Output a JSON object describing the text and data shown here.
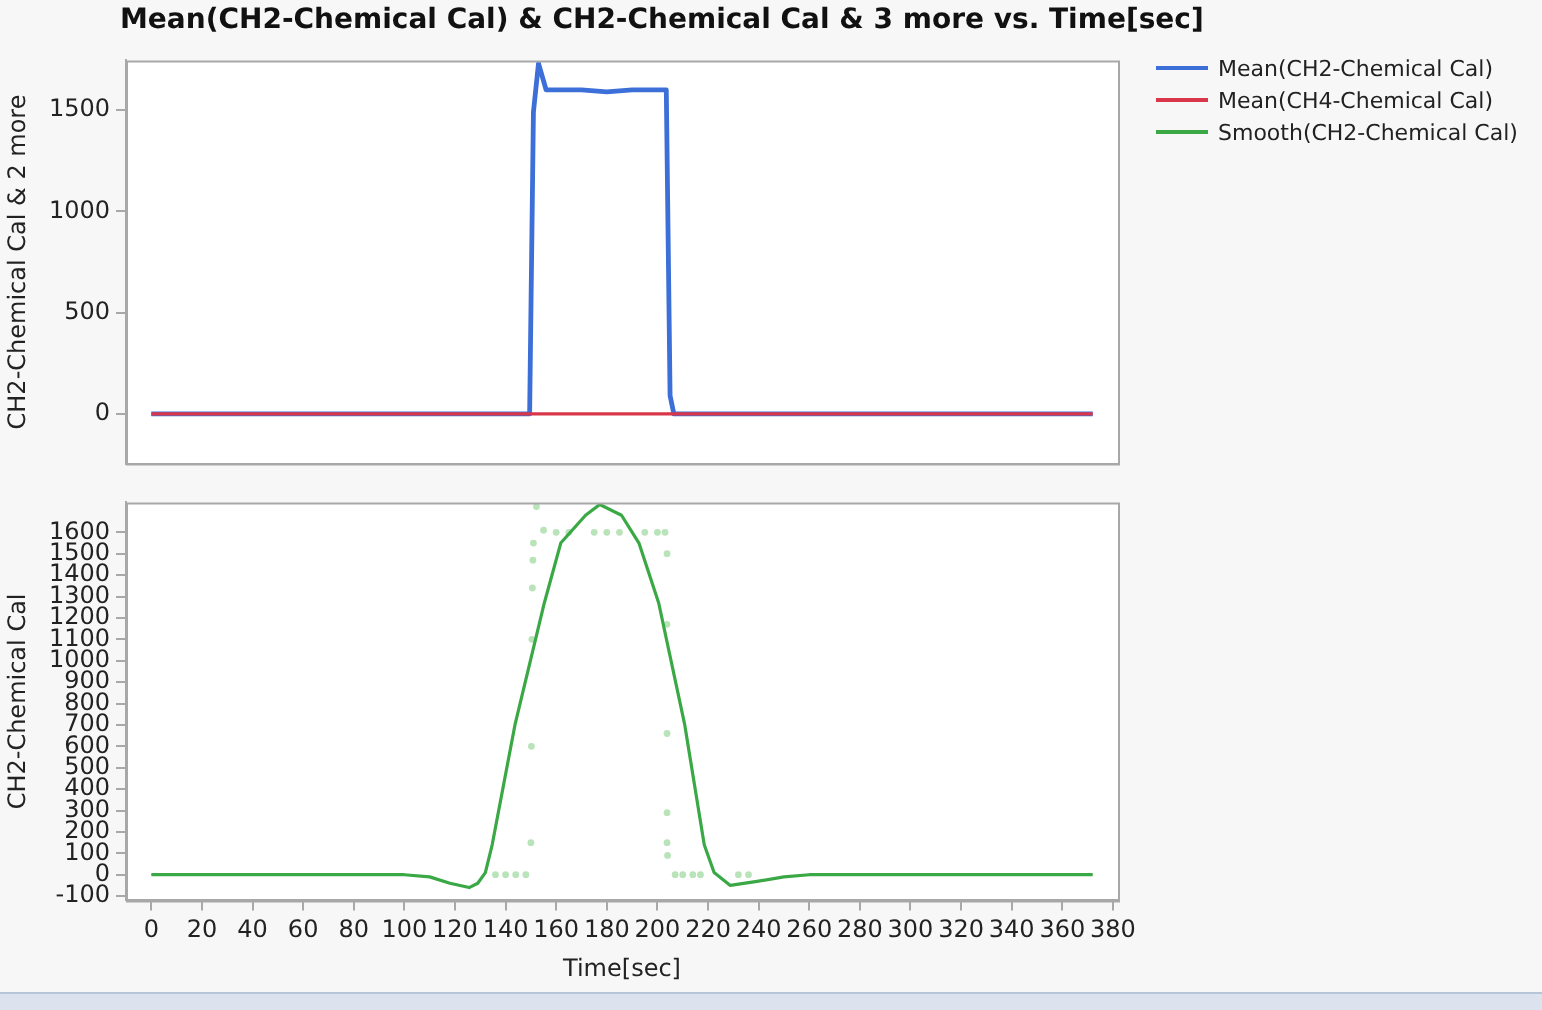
{
  "chart_data": [
    {
      "type": "line",
      "title": "Mean(CH2-Chemical Cal) & CH2-Chemical Cal & 3 more vs. Time[sec]",
      "ylabel": "CH2-Chemical Cal & 2 more",
      "xlim": [
        -10,
        382
      ],
      "ylim": [
        -245,
        1745
      ],
      "yticks": [
        0,
        500,
        1000,
        1500
      ],
      "tick_labels": "y",
      "legend": "right",
      "grid": false,
      "marker": "none",
      "line_style": "solid",
      "series": [
        {
          "name": "Mean(CH2-Chemical Cal)",
          "color": "#3d6fd8",
          "x": [
            0,
            50,
            100,
            149.5,
            151,
            153,
            156,
            160,
            170,
            180,
            190,
            200,
            203.5,
            205,
            206.5,
            250,
            300,
            372
          ],
          "values": [
            0,
            0,
            0,
            0,
            1490,
            1730,
            1600,
            1600,
            1600,
            1590,
            1600,
            1600,
            1600,
            90,
            0,
            0,
            0,
            0
          ]
        },
        {
          "name": "Mean(CH4-Chemical Cal)",
          "color": "#d9364a",
          "x": [
            0,
            372
          ],
          "values": [
            0,
            0
          ]
        }
      ]
    },
    {
      "type": "line",
      "ylabel": "CH2-Chemical Cal",
      "xlabel": "Time[sec]",
      "xlim": [
        -10,
        382
      ],
      "xticks": [
        0,
        20,
        40,
        60,
        80,
        100,
        120,
        140,
        160,
        180,
        200,
        220,
        240,
        260,
        280,
        300,
        320,
        340,
        360,
        380
      ],
      "ylim": [
        -120,
        1740
      ],
      "yticks": [
        -100,
        0,
        100,
        200,
        300,
        400,
        500,
        600,
        700,
        800,
        900,
        1000,
        1100,
        1200,
        1300,
        1400,
        1500,
        1600
      ],
      "legend": "right",
      "grid": false,
      "marker": "none",
      "line_style": "solid",
      "series": [
        {
          "type": "scatter",
          "marker": "circle",
          "color": "#b9e3b9",
          "x": [
            136,
            140,
            144,
            148,
            150,
            150.2,
            150.4,
            150.6,
            150.8,
            151,
            152.2,
            155,
            160,
            165,
            170,
            175,
            180,
            185,
            190,
            195,
            200,
            203,
            203.8,
            203.8,
            203.8,
            203.8,
            203.8,
            204,
            207,
            210,
            214,
            217,
            232,
            236
          ],
          "values": [
            0,
            0,
            0,
            0,
            150,
            600,
            1100,
            1340,
            1470,
            1550,
            1720,
            1610,
            1600,
            1600,
            null,
            1600,
            1600,
            1600,
            null,
            1600,
            1600,
            1600,
            1500,
            1170,
            660,
            290,
            150,
            90,
            0,
            0,
            0,
            0,
            0,
            0
          ]
        },
        {
          "name": "Smooth(CH2-Chemical Cal)",
          "color": "#3aa845",
          "x": [
            0,
            50,
            90,
            100,
            110,
            118,
            125.6,
            129,
            132,
            134.7,
            143.7,
            155.3,
            161.8,
            171.6,
            177.2,
            185.8,
            192.7,
            200.5,
            210.8,
            218.5,
            222.4,
            228.8,
            240,
            250,
            260,
            270,
            372
          ],
          "values": [
            0,
            0,
            0,
            0,
            -10,
            -40,
            -60,
            -40,
            10,
            140,
            700,
            1270,
            1550,
            1680,
            1730,
            1680,
            1550,
            1270,
            700,
            140,
            10,
            -50,
            -30,
            -10,
            0,
            0,
            0
          ]
        }
      ]
    }
  ]
}
